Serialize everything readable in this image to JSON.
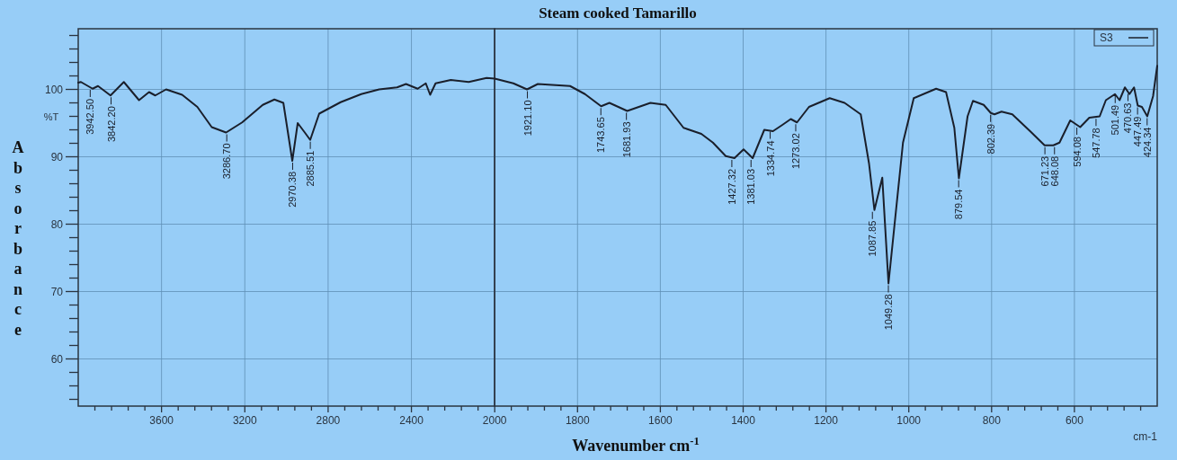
{
  "chart_data": [
    {
      "type": "line",
      "ylabel": "Absorbance",
      "xlim": [
        4000,
        2000
      ],
      "ylim": [
        53,
        109
      ],
      "xticks": [
        {
          "value": 3920,
          "label": null
        },
        {
          "value": 3840,
          "label": null
        },
        {
          "value": 3760,
          "label": null
        },
        {
          "value": 3680,
          "label": null
        },
        3600,
        {
          "value": 3520,
          "label": null
        },
        {
          "value": 3440,
          "label": null
        },
        {
          "value": 3360,
          "label": null
        },
        {
          "value": 3280,
          "label": null
        },
        3200,
        {
          "value": 3120,
          "label": null
        },
        {
          "value": 3040,
          "label": null
        },
        {
          "value": 2960,
          "label": null
        },
        {
          "value": 2880,
          "label": null
        },
        2800,
        {
          "value": 2720,
          "label": null
        },
        {
          "value": 2640,
          "label": null
        },
        {
          "value": 2560,
          "label": null
        },
        {
          "value": 2480,
          "label": null
        },
        2400,
        {
          "value": 2320,
          "label": null
        },
        {
          "value": 2240,
          "label": null
        },
        {
          "value": 2160,
          "label": null
        },
        {
          "value": 2080,
          "label": null
        },
        2000
      ],
      "yticks": [
        {
          "value": 54,
          "label": null
        },
        {
          "value": 56,
          "label": null
        },
        {
          "value": 58,
          "label": null
        },
        60,
        {
          "value": 62,
          "label": null
        },
        {
          "value": 64,
          "label": null
        },
        {
          "value": 66,
          "label": null
        },
        {
          "value": 68,
          "label": null
        },
        70,
        {
          "value": 72,
          "label": null
        },
        {
          "value": 74,
          "label": null
        },
        {
          "value": 76,
          "label": null
        },
        {
          "value": 78,
          "label": null
        },
        80,
        {
          "value": 82,
          "label": null
        },
        {
          "value": 84,
          "label": null
        },
        {
          "value": 86,
          "label": null
        },
        {
          "value": 88,
          "label": null
        },
        90,
        {
          "value": 92,
          "label": null
        },
        {
          "value": 94,
          "label": null
        },
        {
          "value": 96,
          "label": null
        },
        {
          "value": 98,
          "label": null
        },
        100,
        {
          "value": 102,
          "label": null
        },
        {
          "value": 104,
          "label": null
        },
        {
          "value": 106,
          "label": null
        },
        {
          "value": 108,
          "label": null
        }
      ],
      "grid": true,
      "line_style": "solid",
      "series": [
        {
          "color": "#1a1f2b",
          "x": [
            4000,
            3987,
            3931,
            3905,
            3845,
            3781,
            3708,
            3660,
            3630,
            3578,
            3501,
            3428,
            3359,
            3290,
            3213,
            3114,
            3058,
            3015,
            2972,
            2946,
            2912,
            2886,
            2843,
            2740,
            2641,
            2555,
            2469,
            2426,
            2370,
            2331,
            2310,
            2284,
            2211,
            2125,
            2039,
            2000
          ],
          "values": [
            101,
            101.1,
            100.1,
            100.5,
            99.1,
            101.1,
            98.4,
            99.6,
            99.1,
            100,
            99.2,
            97.4,
            94.4,
            93.6,
            95.1,
            97.7,
            98.5,
            98,
            89.4,
            95,
            93.6,
            92.5,
            96.4,
            98.1,
            99.3,
            100,
            100.3,
            100.8,
            100.1,
            100.9,
            99.2,
            100.9,
            101.4,
            101.1,
            101.7,
            101.6
          ]
        }
      ],
      "annotations": [
        "%T",
        {
          "text": "3942.50",
          "x": 3942.5,
          "y": 100.2
        },
        {
          "text": "3842.20",
          "x": 3842.2,
          "y": 99.1
        },
        {
          "text": "3286.70",
          "x": 3286.7,
          "y": 93.6
        },
        {
          "text": "2970.38",
          "x": 2970.38,
          "y": 89.4
        },
        {
          "text": "2885.51",
          "x": 2885.51,
          "y": 92.5
        }
      ]
    },
    {
      "type": "line",
      "title": "Steam cooked Tamarillo",
      "xlabel": "Wavenumber cm$^{-1}$",
      "xlim": [
        2000,
        400
      ],
      "ylim": [
        53,
        109
      ],
      "tick_labels": "x",
      "xticks": [
        {
          "value": 1960,
          "label": null
        },
        {
          "value": 1920,
          "label": null
        },
        {
          "value": 1880,
          "label": null
        },
        {
          "value": 1840,
          "label": null
        },
        1800,
        {
          "value": 1760,
          "label": null
        },
        {
          "value": 1720,
          "label": null
        },
        {
          "value": 1680,
          "label": null
        },
        {
          "value": 1640,
          "label": null
        },
        1600,
        {
          "value": 1560,
          "label": null
        },
        {
          "value": 1520,
          "label": null
        },
        {
          "value": 1480,
          "label": null
        },
        {
          "value": 1440,
          "label": null
        },
        1400,
        {
          "value": 1360,
          "label": null
        },
        {
          "value": 1320,
          "label": null
        },
        {
          "value": 1280,
          "label": null
        },
        {
          "value": 1240,
          "label": null
        },
        1200,
        {
          "value": 1160,
          "label": null
        },
        {
          "value": 1120,
          "label": null
        },
        {
          "value": 1080,
          "label": null
        },
        {
          "value": 1040,
          "label": null
        },
        1000,
        {
          "value": 960,
          "label": null
        },
        {
          "value": 920,
          "label": null
        },
        {
          "value": 880,
          "label": null
        },
        {
          "value": 840,
          "label": null
        },
        800,
        {
          "value": 760,
          "label": null
        },
        {
          "value": 720,
          "label": null
        },
        {
          "value": 680,
          "label": null
        },
        {
          "value": 640,
          "label": null
        },
        600,
        {
          "value": 560,
          "label": null
        },
        {
          "value": 520,
          "label": null
        },
        {
          "value": 480,
          "label": null
        },
        {
          "value": 440,
          "label": null
        }
      ],
      "yticks": [
        60,
        70,
        80,
        90,
        100
      ],
      "grid": true,
      "legend": "top right",
      "line_style": "solid",
      "series": [
        {
          "name": "S3",
          "color": "#1a1f2b",
          "x": [
            2000,
            1955,
            1922,
            1896,
            1818,
            1782,
            1743,
            1723,
            1680,
            1624,
            1587,
            1544,
            1501,
            1473,
            1442,
            1421,
            1399,
            1377,
            1349,
            1328,
            1306,
            1285,
            1270,
            1241,
            1191,
            1155,
            1116,
            1096,
            1083,
            1064,
            1049,
            1014,
            988,
            934,
            910,
            890,
            879,
            858,
            845,
            819,
            802,
            793,
            776,
            750,
            707,
            672,
            651,
            636,
            610,
            586,
            564,
            539,
            524,
            502,
            491,
            478,
            467,
            456,
            447,
            437,
            424,
            410,
            400
          ],
          "values": [
            101.6,
            100.9,
            100,
            100.8,
            100.5,
            99.3,
            97.5,
            98,
            96.8,
            98,
            97.7,
            94.3,
            93.4,
            92.1,
            90.1,
            89.8,
            91.1,
            89.8,
            94,
            93.8,
            94.7,
            95.6,
            95.1,
            97.4,
            98.7,
            98,
            96.3,
            89,
            82.1,
            86.9,
            71.2,
            92.1,
            98.7,
            100.1,
            99.6,
            94.3,
            86.8,
            96,
            98.3,
            97.7,
            96.5,
            96.3,
            96.7,
            96.3,
            93.8,
            91.7,
            91.7,
            92.1,
            95.4,
            94.4,
            95.8,
            96,
            98.4,
            99.3,
            98.4,
            100.3,
            99.3,
            100.3,
            97.6,
            97.4,
            96,
            99,
            103.5
          ]
        }
      ],
      "annotations": [
        "cm-1",
        {
          "text": "1921.10",
          "x": 1921.1,
          "y": 100
        },
        {
          "text": "1743.65",
          "x": 1743.65,
          "y": 97.5
        },
        {
          "text": "1681.93",
          "x": 1681.93,
          "y": 96.8
        },
        {
          "text": "1427.32",
          "x": 1427.32,
          "y": 89.8
        },
        {
          "text": "1381.03",
          "x": 1381.03,
          "y": 89.8
        },
        {
          "text": "1334.74",
          "x": 1334.74,
          "y": 94
        },
        {
          "text": "1273.02",
          "x": 1273.02,
          "y": 95.1
        },
        {
          "text": "1087.85",
          "x": 1087.85,
          "y": 82.1
        },
        {
          "text": "1049.28",
          "x": 1049.28,
          "y": 71.2
        },
        {
          "text": "879.54",
          "x": 879.54,
          "y": 86.8
        },
        {
          "text": "802.39",
          "x": 802.39,
          "y": 96.5
        },
        {
          "text": "671.23",
          "x": 671.23,
          "y": 91.7
        },
        {
          "text": "648.08",
          "x": 648.08,
          "y": 91.7
        },
        {
          "text": "594.08",
          "x": 594.08,
          "y": 94.6
        },
        {
          "text": "547.78",
          "x": 547.78,
          "y": 95.9
        },
        {
          "text": "501.49",
          "x": 501.49,
          "y": 99.3
        },
        {
          "text": "470.63",
          "x": 470.63,
          "y": 99.6
        },
        {
          "text": "447.49",
          "x": 447.49,
          "y": 97.6
        },
        {
          "text": "424.34",
          "x": 424.34,
          "y": 96
        }
      ]
    }
  ]
}
